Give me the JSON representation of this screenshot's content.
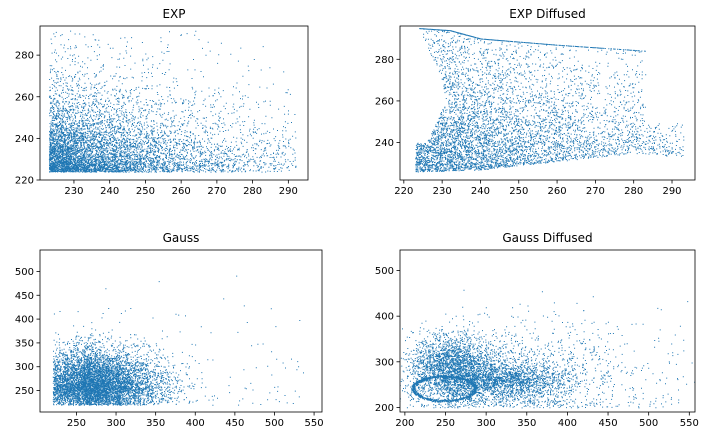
{
  "chart_data": [
    {
      "type": "scatter",
      "title": "EXP",
      "xlabel": "",
      "ylabel": "",
      "xlim": [
        220.5,
        295.5
      ],
      "ylim": [
        220,
        294
      ],
      "xticks": [
        230,
        240,
        250,
        260,
        270,
        280,
        290
      ],
      "yticks": [
        220,
        240,
        260,
        280
      ],
      "color": "#1f77b4",
      "series": [
        {
          "distribution": "exponential",
          "x_range": [
            223,
            292
          ],
          "y_range": [
            224,
            292
          ],
          "x_decay": 22,
          "y_decay": 14,
          "n_points": 6500
        }
      ]
    },
    {
      "type": "scatter",
      "title": "EXP Diffused",
      "xlabel": "",
      "ylabel": "",
      "xlim": [
        219,
        296
      ],
      "ylim": [
        222,
        296
      ],
      "xticks": [
        220,
        230,
        240,
        250,
        260,
        270,
        280,
        290
      ],
      "yticks": [
        240,
        260,
        280
      ],
      "color": "#1f77b4",
      "series": [
        {
          "distribution": "diffused-exponential",
          "x_range": [
            223,
            293
          ],
          "upper_boundary": [
            [
              224,
              295
            ],
            [
              232,
              294
            ],
            [
              240,
              290
            ],
            [
              260,
              287
            ],
            [
              284,
              284
            ]
          ],
          "lower_boundary": [
            [
              223,
              226
            ],
            [
              240,
              227
            ],
            [
              260,
              231
            ],
            [
              280,
              235
            ],
            [
              293,
              233
            ]
          ],
          "left_boundary": [
            [
              224,
              295
            ],
            [
              230,
              270
            ],
            [
              231,
              260
            ],
            [
              226,
              240
            ],
            [
              223,
              226
            ]
          ],
          "right_boundary": [
            [
              284,
              284
            ],
            [
              283,
              270
            ],
            [
              285,
              255
            ],
            [
              293,
              233
            ]
          ],
          "n_points": 6000
        }
      ]
    },
    {
      "type": "scatter",
      "title": "Gauss",
      "xlabel": "",
      "ylabel": "",
      "xlim": [
        204,
        560
      ],
      "ylim": [
        205,
        545
      ],
      "xticks": [
        250,
        300,
        350,
        400,
        450,
        500,
        550
      ],
      "yticks": [
        250,
        300,
        350,
        400,
        450,
        500
      ],
      "color": "#1f77b4",
      "series": [
        {
          "distribution": "gaussian-truncated",
          "x_mean": 258,
          "x_sd": 48,
          "y_mean": 250,
          "y_sd": 42,
          "x_min": 220,
          "y_min": 220,
          "n_points": 6500
        }
      ]
    },
    {
      "type": "scatter",
      "title": "Gauss Diffused",
      "xlabel": "",
      "ylabel": "",
      "xlim": [
        194,
        557
      ],
      "ylim": [
        190,
        545
      ],
      "xticks": [
        200,
        250,
        300,
        350,
        400,
        450,
        500,
        550
      ],
      "yticks": [
        200,
        300,
        400,
        500
      ],
      "color": "#1f77b4",
      "series": [
        {
          "distribution": "gaussian-diffused",
          "clusters": [
            {
              "x": 258,
              "y": 285,
              "sx": 28,
              "sy": 38,
              "weight": 0.45
            },
            {
              "x": 325,
              "y": 258,
              "sx": 40,
              "sy": 22,
              "weight": 0.3
            },
            {
              "x": 360,
              "y": 280,
              "sx": 75,
              "sy": 55,
              "weight": 0.1
            }
          ],
          "ring": {
            "x": 248,
            "y": 242,
            "rx": 38,
            "ry": 27,
            "weight": 0.15
          },
          "n_points": 6500
        }
      ]
    }
  ]
}
